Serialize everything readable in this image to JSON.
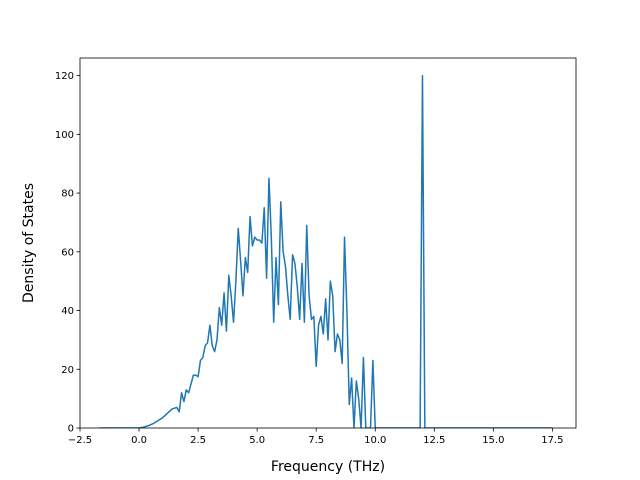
{
  "chart_data": {
    "type": "line",
    "title": "",
    "xlabel": "Frequency (THz)",
    "ylabel": "Density of States",
    "xlim": [
      -2.5,
      18.5
    ],
    "ylim": [
      0,
      126
    ],
    "xticks": [
      -2.5,
      0.0,
      2.5,
      5.0,
      7.5,
      10.0,
      12.5,
      15.0,
      17.5
    ],
    "xtick_labels": [
      "−2.5",
      "0.0",
      "2.5",
      "5.0",
      "7.5",
      "10.0",
      "12.5",
      "15.0",
      "17.5"
    ],
    "yticks": [
      0,
      20,
      40,
      60,
      80,
      100,
      120
    ],
    "ytick_labels": [
      "0",
      "20",
      "40",
      "60",
      "80",
      "100",
      "120"
    ],
    "grid": false,
    "legend": "none",
    "line_color": "#1f77b4",
    "series": [
      {
        "x": [
          -1.7,
          -1.0,
          -0.5,
          0.0,
          0.2,
          0.4,
          0.6,
          0.8,
          1.0,
          1.2,
          1.4,
          1.6,
          1.7,
          1.8,
          1.9,
          2.0,
          2.1,
          2.2,
          2.3,
          2.4,
          2.5,
          2.6,
          2.7,
          2.8,
          2.9,
          3.0,
          3.1,
          3.2,
          3.3,
          3.4,
          3.5,
          3.6,
          3.7,
          3.8,
          3.9,
          4.0,
          4.1,
          4.2,
          4.3,
          4.4,
          4.5,
          4.6,
          4.7,
          4.8,
          4.9,
          5.0,
          5.1,
          5.2,
          5.3,
          5.4,
          5.5,
          5.6,
          5.7,
          5.8,
          5.9,
          6.0,
          6.1,
          6.2,
          6.3,
          6.4,
          6.5,
          6.6,
          6.7,
          6.8,
          6.9,
          7.0,
          7.1,
          7.2,
          7.3,
          7.4,
          7.5,
          7.6,
          7.7,
          7.8,
          7.9,
          8.0,
          8.1,
          8.2,
          8.3,
          8.4,
          8.5,
          8.6,
          8.7,
          8.8,
          8.9,
          9.0,
          9.1,
          9.2,
          9.3,
          9.4,
          9.5,
          9.6,
          9.7,
          9.8,
          9.9,
          10.0,
          10.1,
          10.2,
          11.0,
          11.9,
          12.0,
          12.1,
          12.2,
          13.0,
          15.0,
          17.5
        ],
        "y": [
          0,
          0,
          0,
          0,
          0.3,
          0.8,
          1.5,
          2.5,
          3.5,
          5,
          6.5,
          7,
          5.5,
          12,
          9,
          13,
          12,
          15,
          18,
          18,
          17.5,
          23,
          24,
          28,
          29,
          35,
          28,
          26,
          30,
          41,
          35,
          46,
          33,
          52,
          45,
          36,
          50,
          68,
          57,
          45,
          58,
          53,
          72,
          62,
          65,
          64,
          64,
          63,
          75,
          51,
          85,
          65,
          36,
          58,
          42,
          77,
          60,
          55,
          45,
          37,
          59,
          56,
          48,
          37,
          56,
          36,
          69,
          45,
          37,
          38,
          21,
          35,
          38,
          32,
          44,
          30,
          50,
          45,
          26,
          32,
          30,
          22,
          65,
          40,
          8,
          17,
          0,
          16,
          10,
          0,
          24,
          0,
          0,
          0,
          23,
          0,
          0,
          0,
          0,
          0,
          120,
          0,
          0,
          0,
          0,
          0
        ]
      }
    ]
  }
}
